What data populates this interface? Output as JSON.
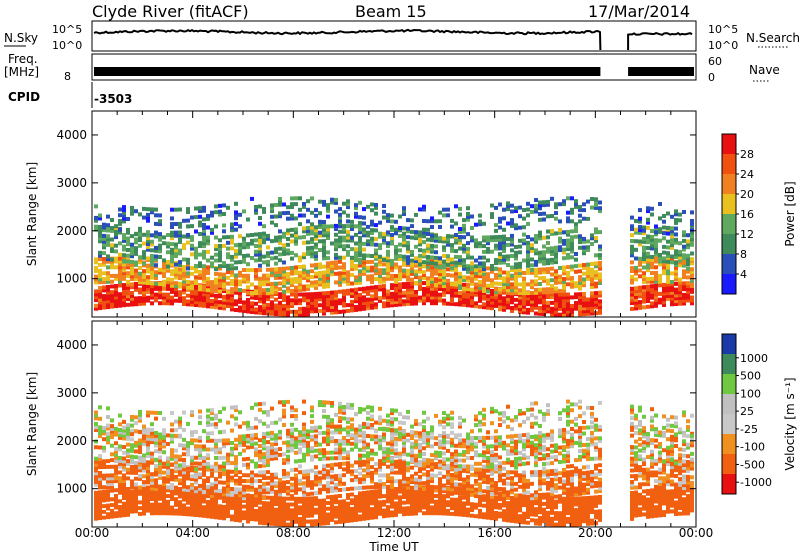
{
  "header": {
    "station": "Clyde River (fitACF)",
    "beam": "Beam 15",
    "date": "17/Mar/2014"
  },
  "nsky_panel": {
    "left_label": "N.Sky",
    "right_label": "N.Search",
    "ticks": [
      "10^5",
      "10^0"
    ],
    "right_ticks": [
      "10^5",
      "10^0"
    ]
  },
  "freq_panel": {
    "left_label_1": "Freq.",
    "left_label_2": "[MHz]",
    "left_tick": "8",
    "right_label": "Nave",
    "right_ticks": [
      "60",
      "0"
    ]
  },
  "cpid_panel": {
    "label": "CPID",
    "value": "-3503"
  },
  "x_axis": {
    "label": "Time UT",
    "ticks": [
      "00:00",
      "04:00",
      "08:00",
      "12:00",
      "16:00",
      "20:00",
      "00:00"
    ]
  },
  "colors": {
    "power_scale": [
      "#1a1aff",
      "#2a4fb8",
      "#3f8a5a",
      "#5fa860",
      "#e8c020",
      "#f08020",
      "#f05010",
      "#e81010"
    ],
    "velocity_scale": [
      "#e81010",
      "#f06010",
      "#f09020",
      "#c8c8c8",
      "#c0c0c0",
      "#70c840",
      "#3f8a5a",
      "#1a3aa8"
    ]
  },
  "chart_data": [
    {
      "type": "heatmap",
      "title": "",
      "ylabel": "Slant Range [km]",
      "xlabel": "",
      "ylim": [
        200,
        4500
      ],
      "y_ticks": [
        "4000",
        "3000",
        "2000",
        "1000"
      ],
      "y_tick_values": [
        4000,
        3000,
        2000,
        1000
      ],
      "x_range_hours": [
        0,
        24
      ],
      "data_gap_hours": [
        20.2,
        21.3
      ],
      "colorbar": {
        "label": "Power [dB]",
        "range": [
          0,
          32
        ],
        "ticks": [
          "28",
          "24",
          "20",
          "16",
          "12",
          "8",
          "4"
        ],
        "tick_values": [
          28,
          24,
          20,
          16,
          12,
          8,
          4
        ]
      },
      "bands": [
        {
          "range_km": [
            350,
            800
          ],
          "power_db": 28
        },
        {
          "range_km": [
            800,
            1300
          ],
          "power_db": 20
        },
        {
          "range_km": [
            1300,
            2000
          ],
          "power_db": 12
        },
        {
          "range_km": [
            2000,
            2600
          ],
          "power_db": 8
        }
      ]
    },
    {
      "type": "heatmap",
      "title": "",
      "ylabel": "Slant Range [km]",
      "xlabel": "Time UT",
      "ylim": [
        200,
        4500
      ],
      "y_ticks": [
        "4000",
        "3000",
        "2000",
        "1000"
      ],
      "y_tick_values": [
        4000,
        3000,
        2000,
        1000
      ],
      "x_range_hours": [
        0,
        24
      ],
      "data_gap_hours": [
        20.2,
        21.3
      ],
      "colorbar": {
        "label": "Velocity [m s⁻¹]",
        "range": [
          -1300,
          1300
        ],
        "ticks": [
          "1000",
          "500",
          "100",
          "25",
          "-25",
          "-100",
          "-500",
          "-1000"
        ],
        "tick_values": [
          1000,
          500,
          100,
          25,
          -25,
          -100,
          -500,
          -1000
        ]
      },
      "bands": [
        {
          "range_km": [
            350,
            900
          ],
          "velocity_ms": -300
        },
        {
          "range_km": [
            900,
            1500
          ],
          "velocity_ms": -150
        },
        {
          "range_km": [
            1500,
            2200
          ],
          "velocity_ms": 0
        },
        {
          "range_km": [
            2200,
            2700
          ],
          "velocity_ms": 50
        }
      ]
    }
  ]
}
